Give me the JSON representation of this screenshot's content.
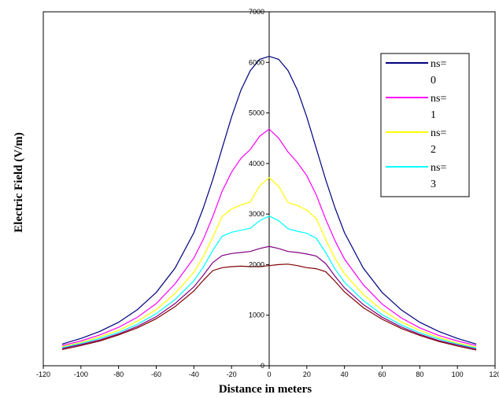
{
  "chart_data": {
    "type": "line",
    "title": "",
    "xlabel": "Distance in meters",
    "ylabel": "Electric Field (V/m)",
    "xlim": [
      -120,
      120
    ],
    "ylim": [
      0,
      7000
    ],
    "xticks": [
      -120,
      -100,
      -80,
      -60,
      -40,
      -20,
      0,
      20,
      40,
      60,
      80,
      100,
      120
    ],
    "yticks": [
      0,
      1000,
      2000,
      3000,
      4000,
      5000,
      6000,
      7000
    ],
    "grid": false,
    "legend_position": "top-right",
    "x": [
      -110,
      -100,
      -90,
      -80,
      -70,
      -60,
      -50,
      -40,
      -35,
      -30,
      -25,
      -20,
      -15,
      -10,
      -5,
      0,
      5,
      10,
      15,
      20,
      25,
      30,
      35,
      40,
      50,
      60,
      70,
      80,
      90,
      100,
      110
    ],
    "series": [
      {
        "name": "ns=\n0",
        "color": "#000080",
        "values": [
          430,
          540,
          680,
          860,
          1110,
          1450,
          1930,
          2630,
          3120,
          3680,
          4300,
          4920,
          5450,
          5840,
          6060,
          6120,
          6060,
          5840,
          5450,
          4920,
          4300,
          3680,
          3120,
          2630,
          1930,
          1450,
          1110,
          860,
          680,
          540,
          430
        ]
      },
      {
        "name": "ns=\n1",
        "color": "#ff00ff",
        "values": [
          400,
          490,
          610,
          760,
          960,
          1230,
          1620,
          2130,
          2500,
          2950,
          3450,
          3830,
          4100,
          4280,
          4540,
          4680,
          4500,
          4230,
          4020,
          3760,
          3380,
          2900,
          2470,
          2110,
          1600,
          1220,
          950,
          750,
          600,
          490,
          400
        ]
      },
      {
        "name": "ns=\n2",
        "color": "#ffff00",
        "values": [
          380,
          460,
          570,
          700,
          880,
          1110,
          1430,
          1850,
          2160,
          2540,
          2950,
          3100,
          3180,
          3240,
          3560,
          3720,
          3550,
          3230,
          3170,
          3080,
          2910,
          2500,
          2120,
          1820,
          1410,
          1100,
          870,
          700,
          560,
          450,
          370
        ]
      },
      {
        "name": "ns=\n3",
        "color": "#00ffff",
        "values": [
          360,
          440,
          540,
          660,
          820,
          1030,
          1310,
          1680,
          1950,
          2280,
          2560,
          2640,
          2680,
          2720,
          2870,
          2960,
          2870,
          2710,
          2660,
          2620,
          2520,
          2240,
          1910,
          1650,
          1290,
          1010,
          810,
          650,
          530,
          430,
          350
        ]
      },
      {
        "name": "",
        "color": "#800080",
        "values": [
          340,
          420,
          510,
          630,
          780,
          970,
          1230,
          1560,
          1790,
          2040,
          2180,
          2220,
          2240,
          2260,
          2320,
          2360,
          2320,
          2260,
          2240,
          2210,
          2170,
          2020,
          1770,
          1540,
          1210,
          960,
          770,
          620,
          500,
          410,
          330
        ]
      },
      {
        "name": "",
        "color": "#800000",
        "values": [
          320,
          400,
          490,
          610,
          750,
          930,
          1170,
          1480,
          1690,
          1880,
          1940,
          1960,
          1970,
          1960,
          1960,
          1980,
          2000,
          2010,
          1980,
          1940,
          1920,
          1860,
          1670,
          1460,
          1150,
          920,
          740,
          600,
          480,
          390,
          310
        ]
      }
    ]
  },
  "legend": [
    {
      "line1": "ns=",
      "line2": "0",
      "color": "#000080"
    },
    {
      "line1": "ns=",
      "line2": "1",
      "color": "#ff00ff"
    },
    {
      "line1": "ns=",
      "line2": "2",
      "color": "#ffff00"
    },
    {
      "line1": "ns=",
      "line2": "3",
      "color": "#00ffff"
    }
  ]
}
